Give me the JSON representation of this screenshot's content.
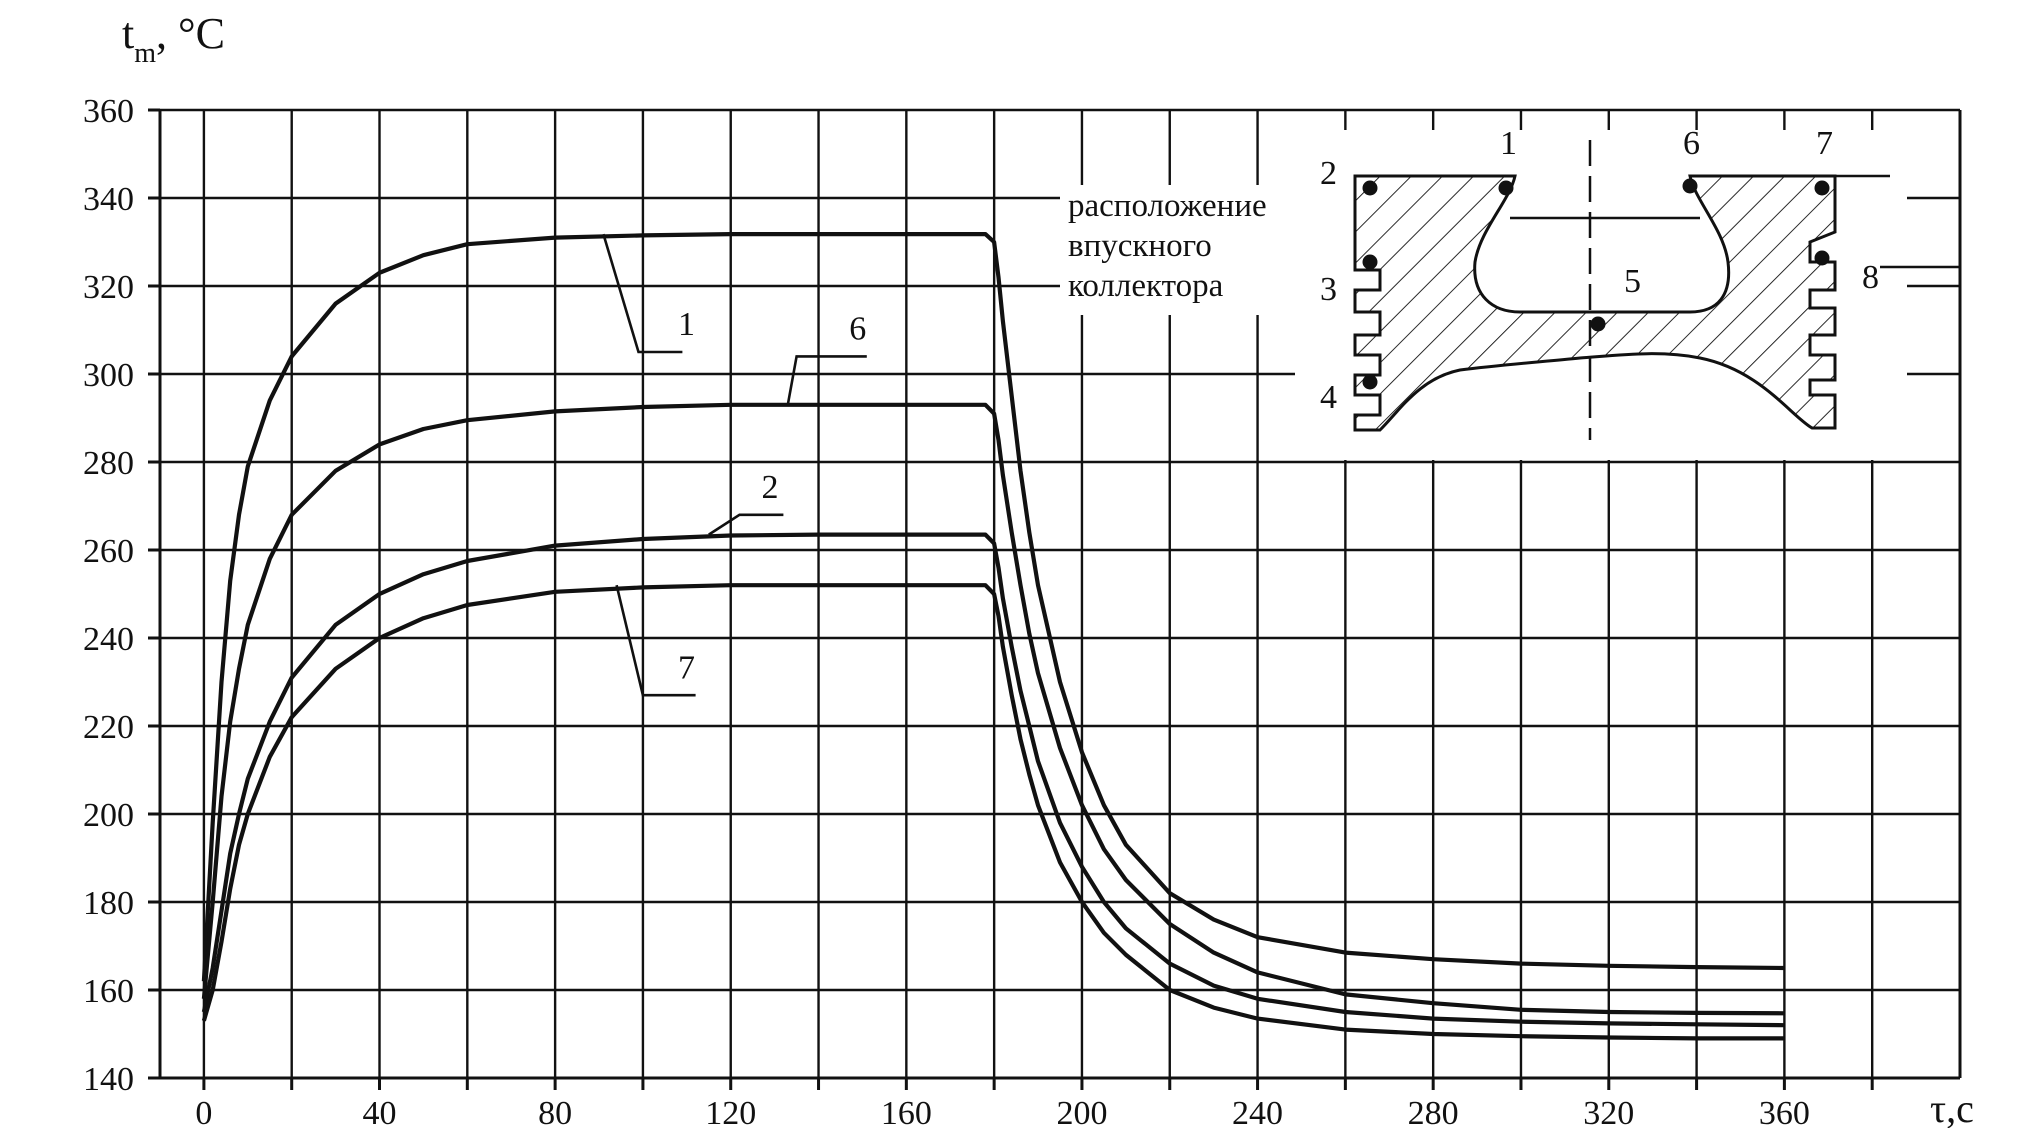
{
  "chart_data": {
    "type": "line",
    "ylabel_main": "t",
    "ylabel_sub": "m",
    "ylabel_unit": ", °C",
    "xlabel": "τ,c",
    "xlim": [
      -10,
      400
    ],
    "ylim": [
      140,
      360
    ],
    "x_ticks_major": [
      0,
      40,
      80,
      120,
      160,
      200,
      240,
      280,
      320,
      360
    ],
    "x_ticks_minor": [
      20,
      60,
      100,
      140,
      180,
      220,
      260,
      300,
      340,
      380
    ],
    "y_ticks": [
      140,
      160,
      180,
      200,
      220,
      240,
      260,
      280,
      300,
      320,
      340,
      360
    ],
    "grid": true,
    "series": [
      {
        "name": "1",
        "x": [
          0,
          2,
          4,
          6,
          8,
          10,
          15,
          20,
          30,
          40,
          50,
          60,
          80,
          100,
          120,
          140,
          160,
          178,
          180,
          181,
          182,
          184,
          186,
          188,
          190,
          195,
          200,
          205,
          210,
          220,
          230,
          240,
          260,
          280,
          300,
          320,
          340,
          360
        ],
        "y": [
          162,
          198,
          230,
          253,
          268,
          279,
          294,
          304,
          316,
          323,
          327,
          329.5,
          331,
          331.5,
          331.8,
          331.8,
          331.8,
          331.8,
          330,
          322,
          312,
          295,
          278,
          264,
          252,
          230,
          214,
          202,
          193,
          182,
          176,
          172,
          168.5,
          167,
          166,
          165.5,
          165.2,
          165
        ]
      },
      {
        "name": "6",
        "x": [
          0,
          2,
          4,
          6,
          8,
          10,
          15,
          20,
          30,
          40,
          50,
          60,
          80,
          100,
          120,
          140,
          160,
          178,
          180,
          181,
          182,
          184,
          186,
          188,
          190,
          195,
          200,
          205,
          210,
          220,
          230,
          240,
          260,
          280,
          300,
          320,
          340,
          360
        ],
        "y": [
          158,
          180,
          204,
          221,
          233,
          243,
          258,
          268,
          278,
          284,
          287.5,
          289.5,
          291.5,
          292.5,
          293,
          293,
          293,
          293,
          291,
          285,
          277,
          264,
          252,
          241,
          232,
          215,
          202,
          192,
          185,
          175,
          168.5,
          164,
          159,
          157,
          155.5,
          155,
          154.8,
          154.7
        ]
      },
      {
        "name": "2",
        "x": [
          0,
          2,
          4,
          6,
          8,
          10,
          15,
          20,
          30,
          40,
          50,
          60,
          80,
          100,
          120,
          140,
          160,
          178,
          180,
          181,
          182,
          184,
          186,
          188,
          190,
          195,
          200,
          205,
          210,
          220,
          230,
          240,
          260,
          280,
          300,
          320,
          340,
          360
        ],
        "y": [
          155,
          165,
          178,
          191,
          200,
          208,
          221,
          231,
          243,
          250,
          254.5,
          257.5,
          261,
          262.5,
          263.3,
          263.5,
          263.5,
          263.5,
          261.5,
          256,
          249,
          238,
          228,
          220,
          212,
          198,
          188,
          180,
          174,
          166,
          161,
          158,
          155,
          153.5,
          152.8,
          152.4,
          152.2,
          152
        ]
      },
      {
        "name": "7",
        "x": [
          0,
          2,
          4,
          6,
          8,
          10,
          15,
          20,
          30,
          40,
          50,
          60,
          80,
          100,
          120,
          140,
          160,
          178,
          180,
          181,
          182,
          184,
          186,
          188,
          190,
          195,
          200,
          205,
          210,
          220,
          230,
          240,
          260,
          280,
          300,
          320,
          340,
          360
        ],
        "y": [
          153,
          160,
          171,
          183,
          193,
          200,
          213,
          222,
          233,
          240,
          244.5,
          247.5,
          250.5,
          251.5,
          252,
          252,
          252,
          252,
          250,
          245,
          238,
          227,
          217,
          209,
          202,
          189,
          180,
          173,
          168,
          160,
          156,
          153.5,
          151,
          150,
          149.5,
          149.2,
          149,
          149
        ]
      }
    ],
    "series_labels": [
      "1",
      "6",
      "2",
      "7"
    ],
    "inset": {
      "caption_lines": [
        "расположение",
        "впускного",
        "коллектора"
      ],
      "point_labels": [
        "1",
        "2",
        "3",
        "4",
        "5",
        "6",
        "7",
        "8"
      ]
    }
  }
}
